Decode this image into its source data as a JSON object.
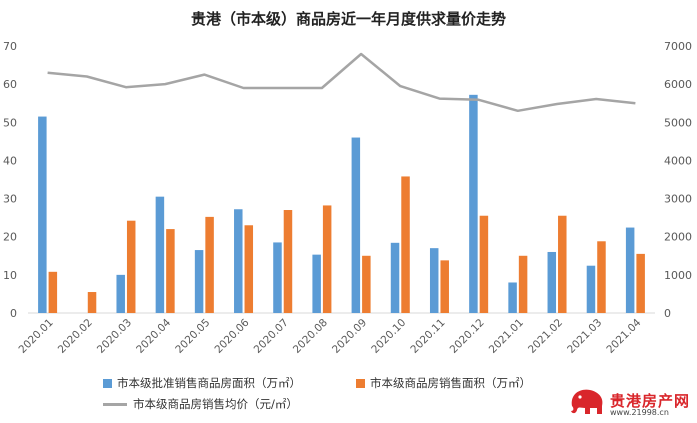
{
  "chart_data": {
    "type": "bar",
    "title": "贵港（市本级）商品房近一年月度供求量价走势",
    "categories": [
      "2020.01",
      "2020.02",
      "2020.03",
      "2020.04",
      "2020.05",
      "2020.06",
      "2020.07",
      "2020.08",
      "2020.09",
      "2020.10",
      "2020.11",
      "2020.12",
      "2021.01",
      "2021.02",
      "2021.03",
      "2021.04"
    ],
    "series": [
      {
        "name": "市本级批准销售商品房面积（万㎡）",
        "type": "bar",
        "axis": "left",
        "color": "#5b9bd5",
        "values": [
          51.5,
          0,
          10,
          30.5,
          16.5,
          27.2,
          18.5,
          15.3,
          46,
          18.4,
          17,
          57.2,
          8,
          16,
          12.4,
          22.4
        ]
      },
      {
        "name": "市本级商品房销售面积（万㎡）",
        "type": "bar",
        "axis": "left",
        "color": "#ed7d31",
        "values": [
          10.8,
          5.5,
          24.2,
          22,
          25.2,
          23,
          27,
          28.2,
          15,
          35.8,
          13.8,
          25.5,
          15,
          25.5,
          18.8,
          15.5
        ]
      },
      {
        "name": "市本级商品房销售均价（元/㎡）",
        "type": "line",
        "axis": "right",
        "color": "#a5a5a5",
        "values": [
          6300,
          6200,
          5920,
          6000,
          6250,
          5900,
          5900,
          5900,
          6790,
          5950,
          5620,
          5590,
          5300,
          5480,
          5610,
          5500
        ]
      }
    ],
    "y_left": {
      "min": 0,
      "max": 70,
      "ticks": [
        0,
        10,
        20,
        30,
        40,
        50,
        60,
        70
      ]
    },
    "y_right": {
      "min": 0,
      "max": 7000,
      "ticks": [
        0,
        1000,
        2000,
        3000,
        4000,
        5000,
        6000,
        7000
      ]
    },
    "grid": false,
    "legend_position": "bottom"
  },
  "logo": {
    "brand": "贵港房产网",
    "url": "www.21998.cn"
  }
}
